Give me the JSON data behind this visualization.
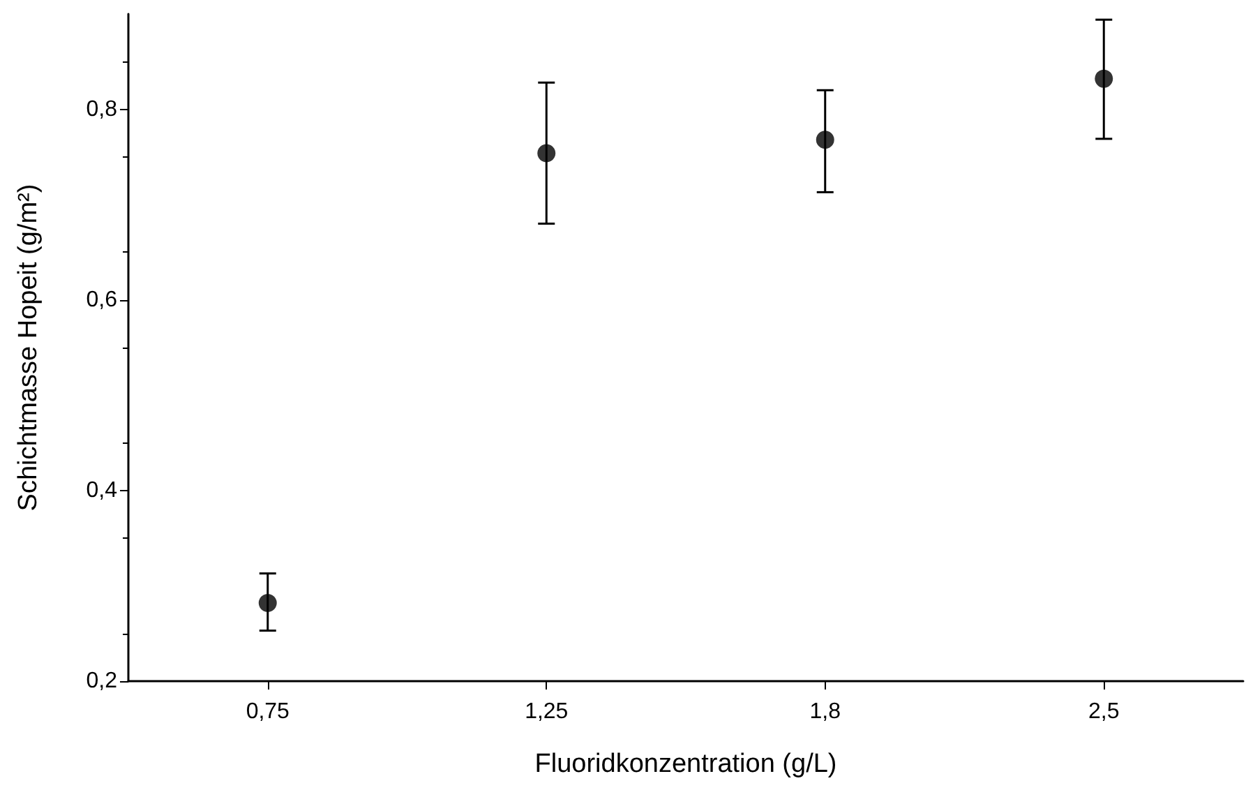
{
  "chart_data": {
    "type": "scatter",
    "xlabel": "Fluoridkonzentration (g/L)",
    "ylabel": "Schichtmasse Hopeit (g/m²)",
    "categories": [
      "0,75",
      "1,25",
      "1,8",
      "2,5"
    ],
    "series": [
      {
        "color": "#000000",
        "values": [
          0.282,
          0.754,
          0.768,
          0.832
        ],
        "errors": [
          [
            0.253,
            0.313
          ],
          [
            0.68,
            0.828
          ],
          [
            0.713,
            0.82
          ],
          [
            0.769,
            0.894
          ]
        ]
      }
    ],
    "ylim": [
      0.2,
      0.9
    ],
    "yticks": [
      {
        "value": 0.2,
        "label": "0,2"
      },
      {
        "value": 0.4,
        "label": "0,4"
      },
      {
        "value": 0.6,
        "label": "0,6"
      },
      {
        "value": 0.8,
        "label": "0,8"
      }
    ],
    "grid": false,
    "marker": "circle"
  }
}
